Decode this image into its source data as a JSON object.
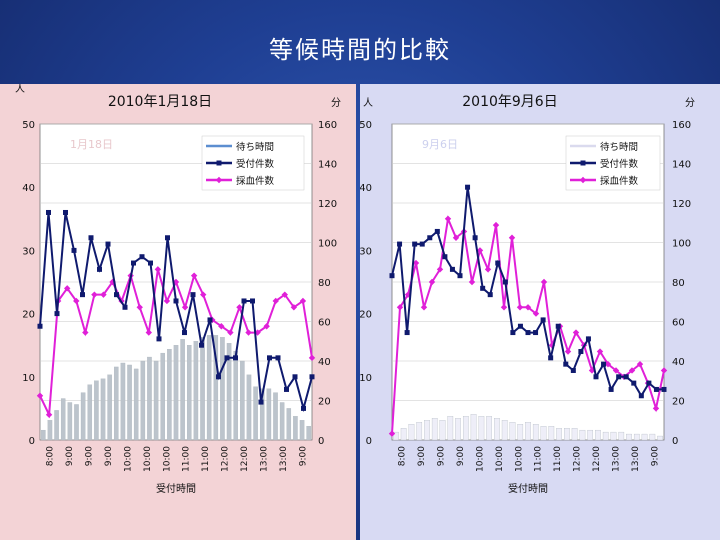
{
  "page_title": "等候時間的比較",
  "chart_data": [
    {
      "id": "left",
      "type": "bar+line",
      "title": "2010年1月18日",
      "left_unit": "人",
      "right_unit": "分",
      "left_ylim": [
        0,
        50
      ],
      "left_ticks": [
        0,
        10,
        20,
        30,
        40,
        50
      ],
      "right_ylim": [
        0,
        160
      ],
      "right_ticks": [
        0,
        20,
        40,
        60,
        80,
        100,
        120,
        140,
        160
      ],
      "xlabel": "受付時間",
      "x_tick_labels": [
        "8:00",
        "9:00",
        "9:00",
        "9:00",
        "10:00",
        "10:00",
        "10:00",
        "11:00",
        "11:00",
        "12:00",
        "12:00",
        "13:00",
        "13:00",
        "9:00"
      ],
      "stamp": "1月18日",
      "legend": {
        "wait": "待ち時間",
        "reception": "受付件数",
        "blood": "採血件数"
      },
      "wait_minutes": [
        5,
        10,
        15,
        21,
        19,
        18,
        24,
        28,
        30,
        31,
        33,
        37,
        39,
        38,
        36,
        40,
        42,
        40,
        44,
        46,
        48,
        51,
        48,
        50,
        52,
        53,
        53,
        52,
        49,
        45,
        40,
        33,
        27,
        26,
        26,
        24,
        19,
        16,
        12,
        10,
        7
      ],
      "reception": [
        18,
        36,
        20,
        36,
        30,
        23,
        32,
        27,
        31,
        23,
        21,
        28,
        29,
        28,
        16,
        32,
        22,
        17,
        23,
        15,
        19,
        10,
        13,
        13,
        22,
        22,
        6,
        13,
        13,
        8,
        10,
        5,
        10
      ],
      "blood": [
        7,
        4,
        22,
        24,
        22,
        17,
        23,
        23,
        25,
        22,
        26,
        21,
        17,
        27,
        22,
        25,
        21,
        26,
        23,
        19,
        18,
        17,
        21,
        17,
        17,
        18,
        22,
        23,
        21,
        22,
        13
      ]
    },
    {
      "id": "right",
      "type": "bar+line",
      "title": "2010年9月6日",
      "left_unit": "人",
      "right_unit": "分",
      "left_ylim": [
        0,
        50
      ],
      "left_ticks": [
        0,
        10,
        20,
        30,
        40,
        50
      ],
      "right_ylim": [
        0,
        160
      ],
      "right_ticks": [
        0,
        20,
        40,
        60,
        80,
        100,
        120,
        140,
        160
      ],
      "xlabel": "受付時間",
      "x_tick_labels": [
        "8:00",
        "9:00",
        "9:00",
        "9:00",
        "10:00",
        "10:00",
        "10:00",
        "11:00",
        "11:00",
        "12:00",
        "12:00",
        "13:00",
        "13:00",
        "9:00"
      ],
      "stamp": "9月6日",
      "legend": {
        "wait": "待ち時間",
        "reception": "受付件数",
        "blood": "採血件数"
      },
      "wait_minutes": [
        4,
        6,
        8,
        9,
        10,
        11,
        10,
        12,
        11,
        12,
        13,
        12,
        12,
        11,
        10,
        9,
        8,
        9,
        8,
        7,
        7,
        6,
        6,
        6,
        5,
        5,
        5,
        4,
        4,
        4,
        3,
        3,
        3,
        3,
        2
      ],
      "reception": [
        26,
        31,
        17,
        31,
        31,
        32,
        33,
        29,
        27,
        26,
        40,
        32,
        24,
        23,
        28,
        25,
        17,
        18,
        17,
        17,
        19,
        13,
        18,
        12,
        11,
        14,
        16,
        10,
        12,
        8,
        10,
        10,
        9,
        7,
        9,
        8,
        8
      ],
      "blood": [
        1,
        21,
        23,
        28,
        21,
        25,
        27,
        35,
        32,
        33,
        25,
        30,
        27,
        34,
        21,
        32,
        21,
        21,
        20,
        25,
        15,
        18,
        14,
        17,
        15,
        11,
        14,
        12,
        11,
        10,
        11,
        12,
        9,
        5,
        11
      ]
    }
  ]
}
